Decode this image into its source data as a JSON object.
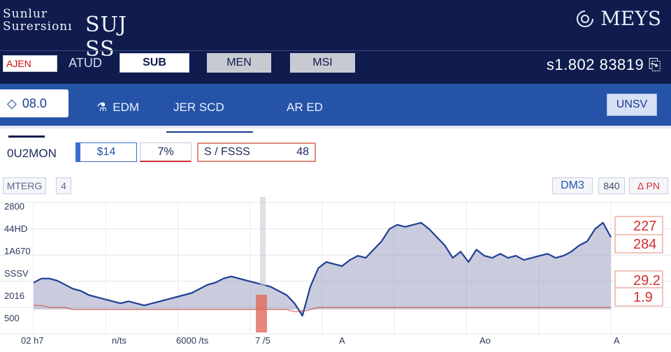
{
  "header": {
    "logo_line1": "Sunlur",
    "logo_line2": "Surersionı",
    "logo_word": "SUJ SS",
    "brand_name": "MEYS",
    "brand_icon": "spiral-logo-icon"
  },
  "nav": {
    "tab_active": "AJEN",
    "tab_atud": "ATUD",
    "tab_sub": "SUB",
    "tab_men": "MEN",
    "tab_msi": "MSI",
    "balance": "s1.802 83819"
  },
  "secbar": {
    "search_value": "08.0",
    "link_edm": "EDM",
    "link_jer": "JER SCD",
    "link_ared": "AR ED",
    "button": "UNSV"
  },
  "fields": {
    "label": "0U2MON",
    "f1": "$14",
    "f2": "7%",
    "f3_left": "S / FSSS",
    "f3_right": "48"
  },
  "toolbar": {
    "tb1": "MTERG",
    "tb2": "4",
    "tb3": "DM3",
    "tb4": "840",
    "tb5": "Δ PN"
  },
  "chart_data": {
    "type": "area",
    "y_tick_labels": [
      "2800",
      "44HD",
      "1A670",
      "SSSV",
      "2016",
      "500"
    ],
    "x_tick_labels": [
      "02 h7",
      "n/ts",
      "6000 /ts",
      "7 /5",
      "A",
      "Ao",
      "A"
    ],
    "right_labels": [
      "227",
      "284",
      "29.2",
      "1.9"
    ],
    "series": [
      {
        "color": "#1f3f92",
        "values": [
          18,
          20,
          20,
          19,
          17,
          15,
          14,
          12,
          11,
          10,
          9,
          8,
          9,
          8,
          7,
          8,
          9,
          10,
          11,
          12,
          13,
          15,
          17,
          18,
          20,
          21,
          20,
          19,
          18,
          17,
          16,
          14,
          12,
          8,
          2,
          16,
          25,
          28,
          27,
          26,
          29,
          31,
          30,
          34,
          38,
          44,
          46,
          45,
          46,
          47,
          44,
          40,
          36,
          30,
          33,
          28,
          34,
          31,
          30,
          32,
          30,
          31,
          29,
          30,
          31,
          32,
          30,
          31,
          33,
          36,
          38,
          44,
          47,
          40
        ]
      },
      {
        "color": "#d04030",
        "values": [
          7,
          7,
          6,
          6,
          6,
          5,
          5,
          5,
          5,
          5,
          5,
          5,
          5,
          5,
          5,
          5,
          5,
          5,
          5,
          5,
          5,
          5,
          5,
          5,
          5,
          5,
          5,
          5,
          5,
          5,
          5,
          5,
          5,
          4,
          4,
          5,
          6,
          6,
          6,
          6,
          6,
          6,
          6,
          6,
          6,
          6,
          6,
          6,
          6,
          6,
          6,
          6,
          6,
          6,
          6,
          6,
          6,
          6,
          6,
          6,
          6,
          6,
          6,
          6,
          6,
          6,
          6,
          6,
          6,
          6,
          6,
          6,
          6,
          6
        ]
      }
    ],
    "grid": true
  }
}
